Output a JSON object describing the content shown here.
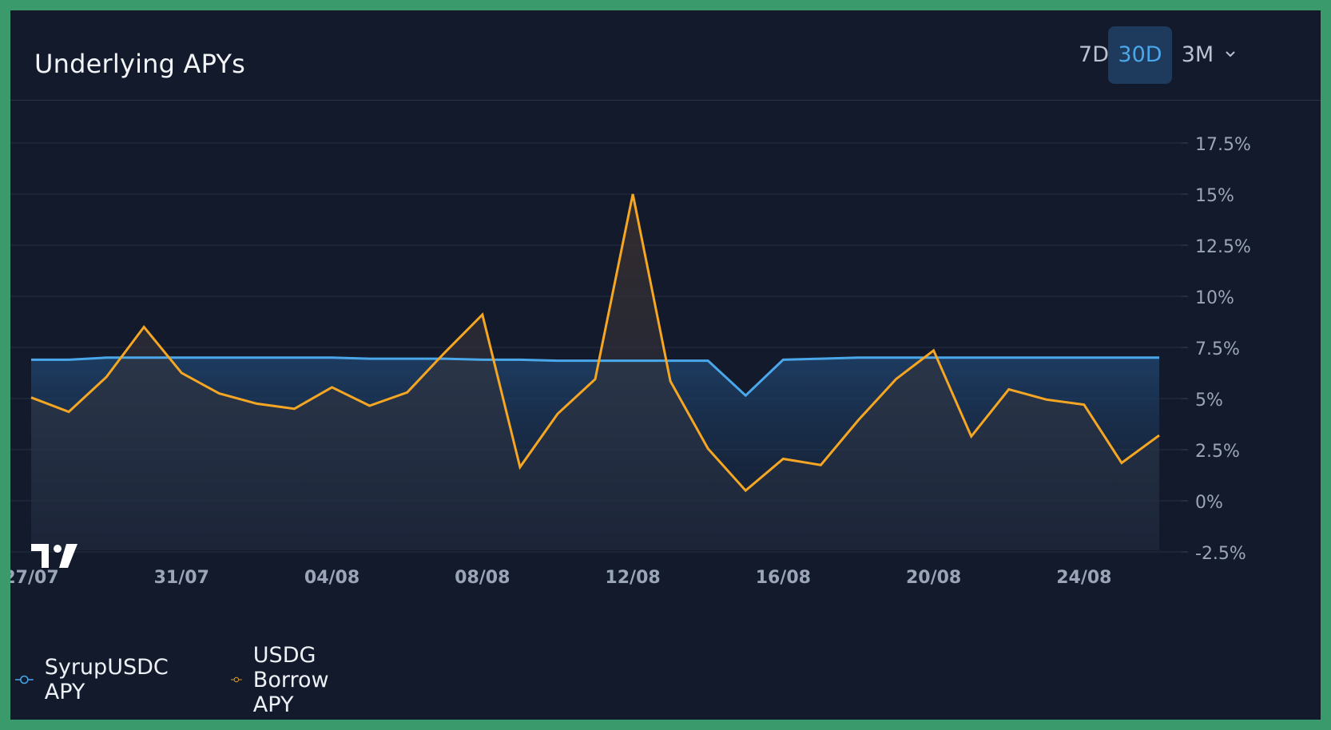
{
  "header": {
    "title": "Underlying APYs",
    "range_tabs": [
      {
        "label": "7D",
        "active": false
      },
      {
        "label": "30D",
        "active": true
      },
      {
        "label": "3M",
        "active": false
      }
    ],
    "dropdown_icon": "chevron-down-icon"
  },
  "colors": {
    "background": "#121a2c",
    "syrup": "#4aa7ea",
    "usdg": "#f5a623",
    "grid": "#263044",
    "axis_text": "#9aa6b8",
    "active_tab_bg": "#1e3a5c"
  },
  "logo": "tradingview-logo",
  "chart_data": {
    "type": "area",
    "title": "Underlying APYs",
    "xlabel": "",
    "ylabel": "",
    "x": [
      "27/07",
      "28/07",
      "29/07",
      "30/07",
      "31/07",
      "01/08",
      "02/08",
      "03/08",
      "04/08",
      "05/08",
      "06/08",
      "07/08",
      "08/08",
      "09/08",
      "10/08",
      "11/08",
      "12/08",
      "13/08",
      "14/08",
      "15/08",
      "16/08",
      "17/08",
      "18/08",
      "19/08",
      "20/08",
      "21/08",
      "22/08",
      "23/08",
      "24/08",
      "25/08",
      "26/08"
    ],
    "x_tick_labels": [
      "27/07",
      "31/07",
      "04/08",
      "08/08",
      "12/08",
      "16/08",
      "20/08",
      "24/08"
    ],
    "ylim": [
      -2.5,
      18.75
    ],
    "y_tick_labels": [
      "17.5%",
      "15%",
      "12.5%",
      "10%",
      "7.5%",
      "5%",
      "2.5%",
      "0%",
      "-2.5%"
    ],
    "y_ticks": [
      17.5,
      15,
      12.5,
      10,
      7.5,
      5,
      2.5,
      0,
      -2.5
    ],
    "grid": true,
    "legend_position": "bottom-left",
    "series": [
      {
        "name": "SyrupUSDC APY",
        "color": "#4aa7ea",
        "values": [
          6.9,
          6.9,
          7.0,
          7.0,
          7.0,
          7.0,
          7.0,
          7.0,
          7.0,
          6.95,
          6.95,
          6.95,
          6.9,
          6.9,
          6.85,
          6.85,
          6.85,
          6.85,
          6.85,
          5.15,
          6.9,
          6.95,
          7.0,
          7.0,
          7.0,
          7.0,
          7.0,
          7.0,
          7.0,
          7.0,
          7.0
        ]
      },
      {
        "name": "USDG Borrow APY",
        "color": "#f5a623",
        "values": [
          5.05,
          4.35,
          6.05,
          8.5,
          6.25,
          5.25,
          4.75,
          4.5,
          5.55,
          4.65,
          5.3,
          7.25,
          9.1,
          1.65,
          4.25,
          5.95,
          15.0,
          5.85,
          2.55,
          0.5,
          2.05,
          1.75,
          3.95,
          5.95,
          7.35,
          3.15,
          5.45,
          4.95,
          4.7,
          1.85,
          3.2
        ]
      }
    ]
  }
}
